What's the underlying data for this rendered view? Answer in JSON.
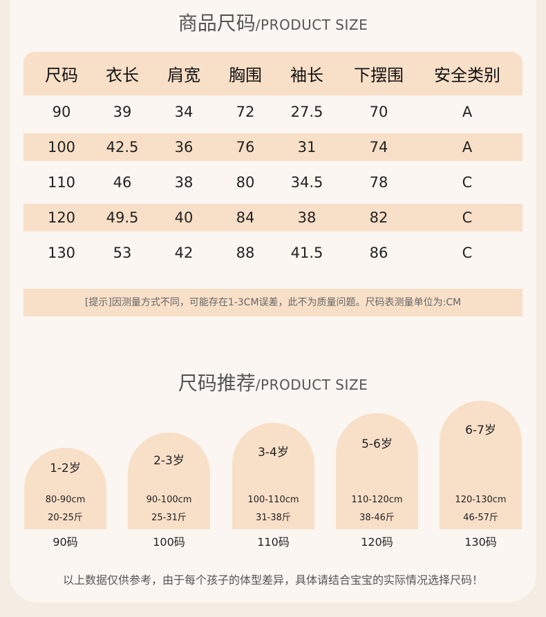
{
  "title1": {
    "zh": "商品尺码",
    "en": "/PRODUCT SIZE"
  },
  "table": {
    "headers": [
      "尺码",
      "衣长",
      "肩宽",
      "胸围",
      "袖长",
      "下摆围",
      "安全类别"
    ],
    "rows": [
      [
        "90",
        "39",
        "34",
        "72",
        "27.5",
        "70",
        "A"
      ],
      [
        "100",
        "42.5",
        "36",
        "76",
        "31",
        "74",
        "A"
      ],
      [
        "110",
        "46",
        "38",
        "80",
        "34.5",
        "78",
        "C"
      ],
      [
        "120",
        "49.5",
        "40",
        "84",
        "38",
        "82",
        "C"
      ],
      [
        "130",
        "53",
        "42",
        "88",
        "41.5",
        "86",
        "C"
      ]
    ]
  },
  "tip": "[提示]因测量方式不同，可能存在1-3CM误差，此不为质量问题。尺码表测量单位为:CM",
  "title2": {
    "zh": "尺码推荐",
    "en": "/PRODUCT SIZE"
  },
  "recommend": [
    {
      "age": "1-2岁",
      "height": "80-90cm",
      "weight": "20-25斤",
      "code": "90码"
    },
    {
      "age": "2-3岁",
      "height": "90-100cm",
      "weight": "25-31斤",
      "code": "100码"
    },
    {
      "age": "3-4岁",
      "height": "100-110cm",
      "weight": "31-38斤",
      "code": "110码"
    },
    {
      "age": "5-6岁",
      "height": "110-120cm",
      "weight": "38-46斤",
      "code": "120码"
    },
    {
      "age": "6-7岁",
      "height": "120-130cm",
      "weight": "46-57斤",
      "code": "130码"
    }
  ],
  "footnote": "以上数据仅供参考，由于每个孩子的体型差异，具体请结合宝宝的实际情况选择尺码！",
  "colors": {
    "accent": "#f8dfc8",
    "background": "#fbf6f1"
  }
}
